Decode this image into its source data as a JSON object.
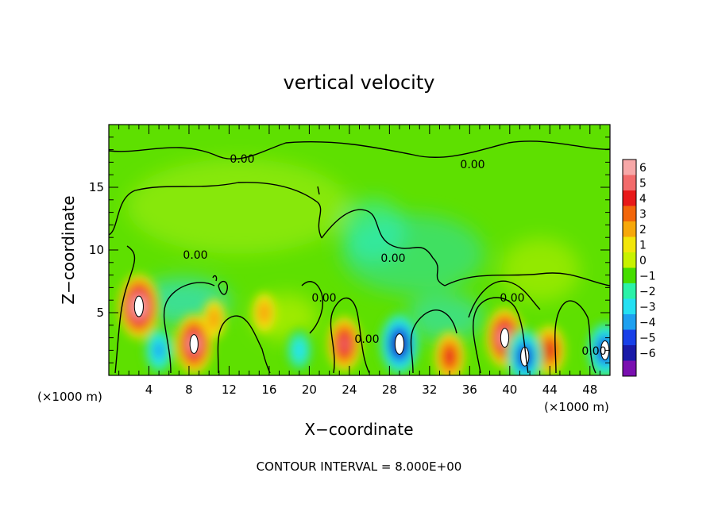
{
  "chart_data": {
    "type": "heatmap",
    "title": "vertical velocity",
    "xlabel": "X−coordinate",
    "ylabel": "Z−coordinate",
    "x_unit_left": "(×1000 m)",
    "x_unit_right": "(×1000 m)",
    "footer": "CONTOUR INTERVAL = 8.000E+00",
    "xlim": [
      0,
      50
    ],
    "ylim": [
      0,
      20
    ],
    "x_ticks": [
      4,
      8,
      12,
      16,
      20,
      24,
      28,
      32,
      36,
      40,
      44,
      48
    ],
    "y_ticks": [
      5,
      10,
      15
    ],
    "colorbar": {
      "labels": [
        "6",
        "5",
        "4",
        "3",
        "2",
        "1",
        "0",
        "−1",
        "−2",
        "−3",
        "−4",
        "−5",
        "−6"
      ],
      "colors": [
        "#f7a8a8",
        "#f26b6b",
        "#e81919",
        "#f2660a",
        "#f7a80a",
        "#f2e60a",
        "#c8f200",
        "#46de00",
        "#2bf2a8",
        "#25e0f2",
        "#1ea0f0",
        "#1940e8",
        "#1a1aa8",
        "#7a10b0"
      ]
    },
    "contour_labels": [
      "0.00",
      "0.00",
      "0.00",
      "0.00",
      "0.00",
      "0.00",
      "0.00",
      "0.00"
    ],
    "updrafts": [
      {
        "x": 3.0,
        "z": 5.5,
        "value": 7
      },
      {
        "x": 8.5,
        "z": 2.5,
        "value": 6
      },
      {
        "x": 10.5,
        "z": 4.5,
        "value": 2
      },
      {
        "x": 15.5,
        "z": 5.0,
        "value": 2
      },
      {
        "x": 23.5,
        "z": 2.5,
        "value": 5
      },
      {
        "x": 34.0,
        "z": 1.5,
        "value": 4
      },
      {
        "x": 39.5,
        "z": 3.0,
        "value": 6
      },
      {
        "x": 44.0,
        "z": 2.0,
        "value": 4
      }
    ],
    "downdrafts": [
      {
        "x": 29.0,
        "z": 2.5,
        "value": -7
      },
      {
        "x": 41.5,
        "z": 1.5,
        "value": -6
      },
      {
        "x": 5.0,
        "z": 2.0,
        "value": -4
      },
      {
        "x": 19.0,
        "z": 2.0,
        "value": -3
      },
      {
        "x": 49.5,
        "z": 2.0,
        "value": -6
      }
    ]
  }
}
